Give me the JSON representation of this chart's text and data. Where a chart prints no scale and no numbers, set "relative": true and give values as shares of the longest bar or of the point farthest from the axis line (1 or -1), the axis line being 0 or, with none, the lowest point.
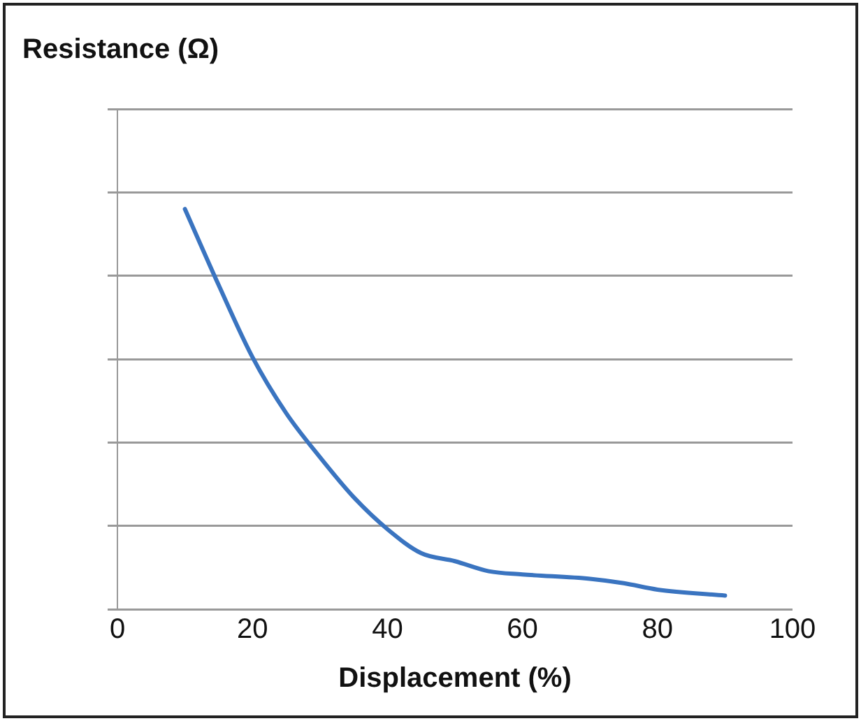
{
  "chart_data": {
    "type": "line",
    "title": "Resistance (Ω)",
    "xlabel": "Displacement (%)",
    "relative": true,
    "x": [
      10,
      15,
      20,
      25,
      30,
      35,
      40,
      45,
      50,
      55,
      60,
      70,
      75,
      80,
      90
    ],
    "series": [
      {
        "color": "#3a74c0",
        "values": [
          1,
          0.81,
          0.63,
          0.49,
          0.38,
          0.28,
          0.2,
          0.14,
          0.12,
          0.095,
          0.087,
          0.076,
          0.065,
          0.049,
          0.034
        ]
      }
    ],
    "xlim": [
      0,
      100
    ],
    "xticks": [
      0,
      20,
      40,
      60,
      80,
      100
    ],
    "grid": "y",
    "legend": false,
    "marker": "none",
    "line_style": "solid"
  }
}
